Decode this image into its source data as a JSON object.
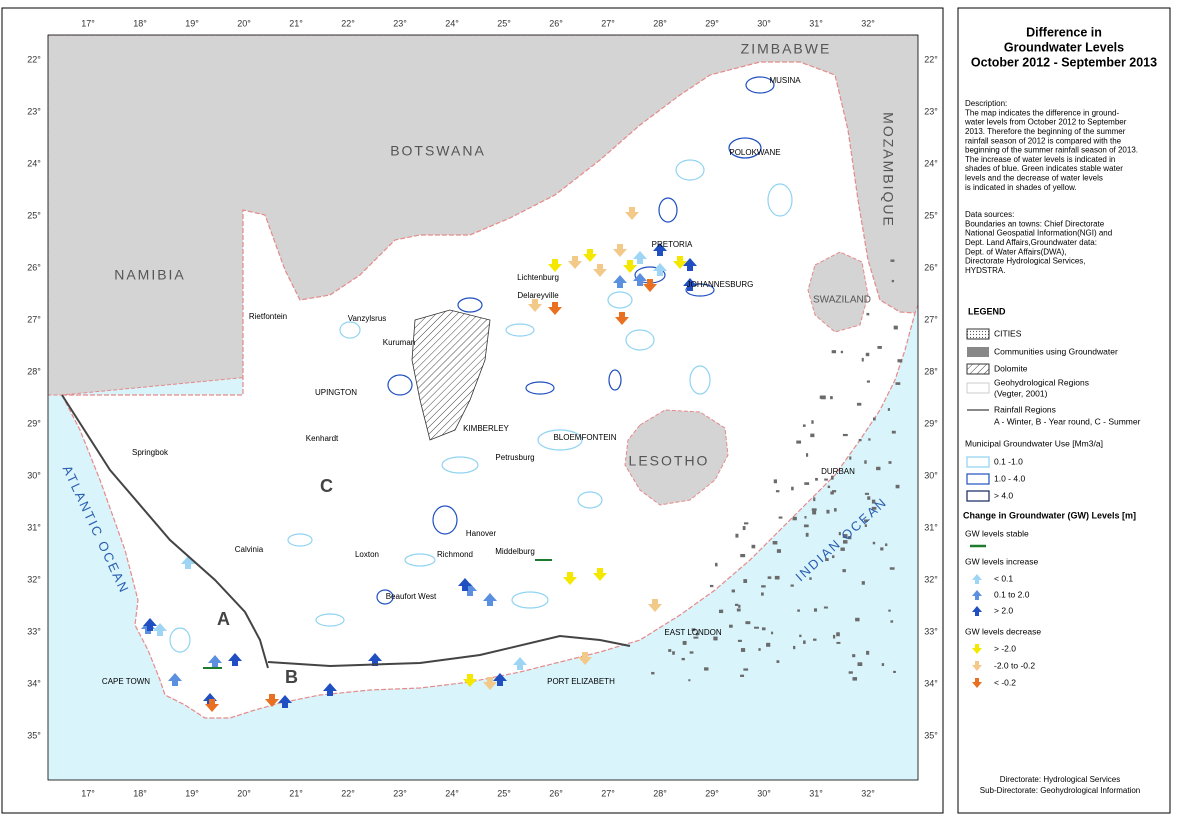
{
  "map": {
    "longitude_labels": [
      "17°",
      "18°",
      "19°",
      "20°",
      "21°",
      "22°",
      "23°",
      "24°",
      "25°",
      "26°",
      "27°",
      "28°",
      "29°",
      "30°",
      "31°",
      "32°"
    ],
    "latitude_labels": [
      "22°",
      "23°",
      "24°",
      "25°",
      "26°",
      "27°",
      "28°",
      "29°",
      "30°",
      "31°",
      "32°",
      "33°",
      "34°",
      "35°"
    ],
    "countries": [
      "ZIMBABWE",
      "BOTSWANA",
      "NAMIBIA",
      "MOZAMBIQUE",
      "SWAZILAND",
      "LESOTHO"
    ],
    "oceans": [
      "ATLANTIC OCEAN",
      "INDIAN OCEAN"
    ],
    "rainfall_region_labels": [
      "A",
      "B",
      "C"
    ],
    "places": [
      "MUSINA",
      "POLOKWANE",
      "PRETORIA",
      "JOHANNESBURG",
      "Lichtenburg",
      "Delareyville",
      "Rietfontein",
      "Vanzylsrus",
      "Kuruman",
      "UPINGTON",
      "KIMBERLEY",
      "Petrusburg",
      "BLOEMFONTEIN",
      "Kenhardt",
      "Springbok",
      "DURBAN",
      "Hanover",
      "Middelburg",
      "Calvinia",
      "Loxton",
      "Richmond",
      "Beaufort West",
      "EAST LONDON",
      "CAPE TOWN",
      "PORT ELIZABETH"
    ]
  },
  "panel": {
    "title": [
      "Difference in",
      "Groundwater Levels",
      "October 2012 - September 2013"
    ],
    "description": [
      "Description:",
      "The map indicates the difference in ground-",
      "water levels from October 2012 to September",
      "2013. Therefore the beginning of the summer",
      "rainfall season of 2012 is compared with the",
      "beginning of the summer rainfall season of 2013.",
      "The increase of water levels is indicated in",
      "shades of blue. Green indicates stable water",
      "levels and the decrease of water levels",
      "is indicated in shades of yellow."
    ],
    "data_sources": [
      "Data sources:",
      "Boundaries an towns: Chief Directorate",
      "National Geospatial Information(NGI) and",
      "Dept. Land Affairs,Groundwater data:",
      "Dept. of Water Affairs(DWA),",
      "Directorate Hydrological Services,",
      "HYDSTRA."
    ],
    "legend": {
      "title": "LEGEND",
      "items": [
        "CITIES",
        "Communities using Groundwater",
        "Dolomite",
        "Geohydrological Regions",
        "(Vegter, 2001)",
        "Rainfall Regions",
        "A - Winter, B - Year round, C - Summer"
      ],
      "municipal_title": "Municipal Groundwater Use [Mm3/a]",
      "municipal": [
        "0.1 -1.0",
        "1.0 - 4.0",
        "> 4.0"
      ],
      "change_title": "Change in Groundwater (GW) Levels [m]",
      "stable": "GW levels stable",
      "increase_title": "GW levels increase",
      "increase": [
        "< 0.1",
        "0.1 to 2.0",
        "> 2.0"
      ],
      "decrease_title": "GW levels decrease",
      "decrease": [
        "> -2.0",
        "-2.0 to -0.2",
        "< -0.2"
      ]
    },
    "footer": [
      "Directorate: Hydrological Services",
      "Sub-Directorate: Geohydrological Information"
    ]
  }
}
